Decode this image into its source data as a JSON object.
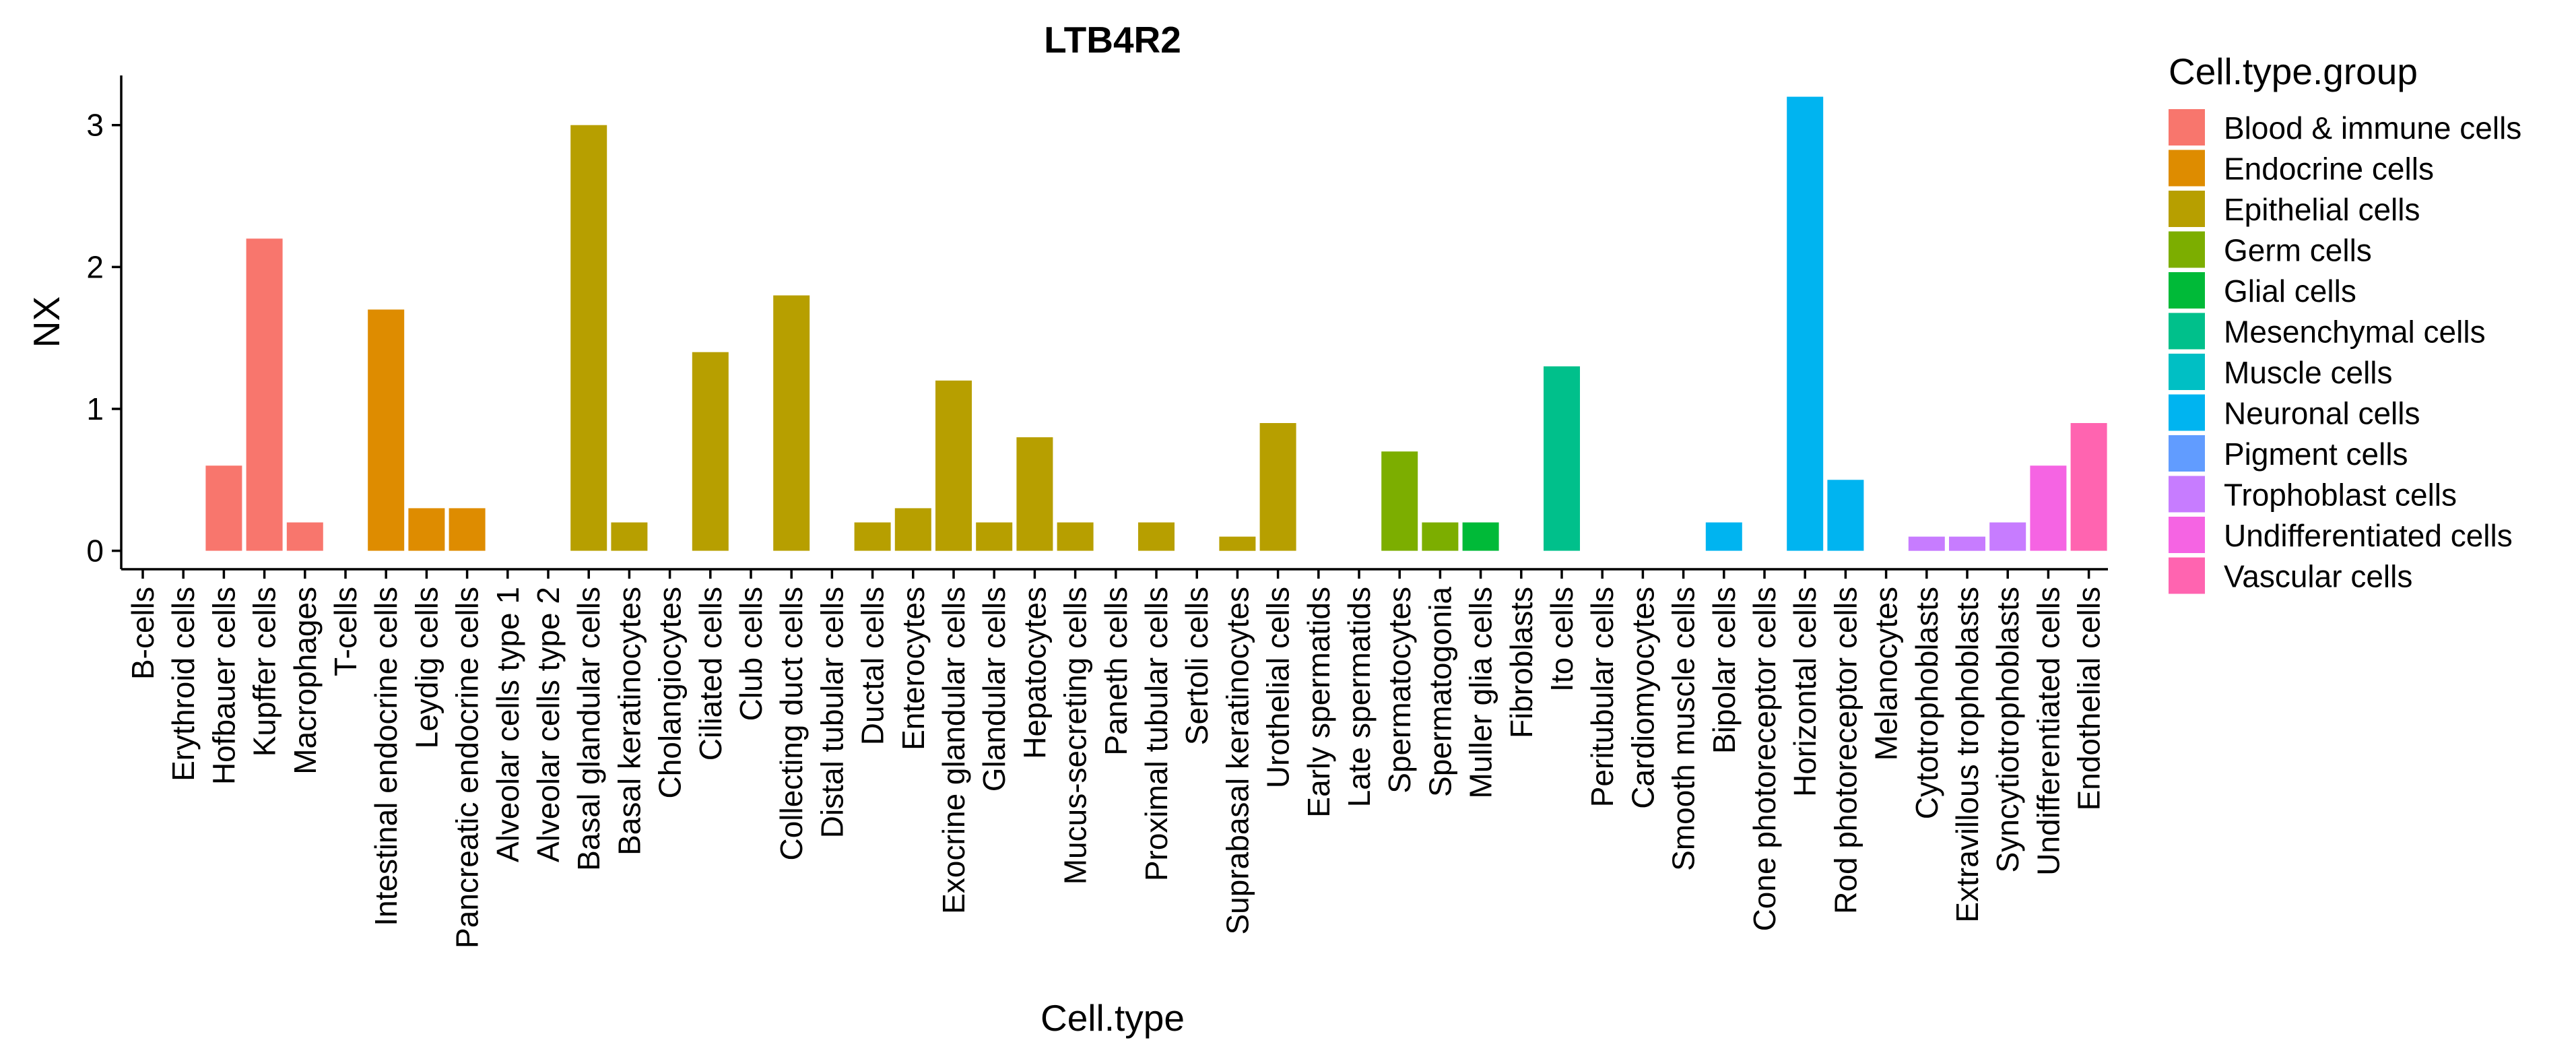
{
  "chart_data": {
    "type": "bar",
    "title": "LTB4R2",
    "xlabel": "Cell.type",
    "ylabel": "NX",
    "ylim": [
      -0.13,
      3.35
    ],
    "yticks": [
      0,
      1,
      2,
      3
    ],
    "grid": false,
    "legend": {
      "title": "Cell.type.group",
      "placement": "right",
      "entries": [
        {
          "name": "Blood & immune cells",
          "color": "#F8766D"
        },
        {
          "name": "Endocrine cells",
          "color": "#DE8C00"
        },
        {
          "name": "Epithelial cells",
          "color": "#B79F00"
        },
        {
          "name": "Germ cells",
          "color": "#7CAE00"
        },
        {
          "name": "Glial cells",
          "color": "#00BA38"
        },
        {
          "name": "Mesenchymal cells",
          "color": "#00C08B"
        },
        {
          "name": "Muscle cells",
          "color": "#00BFC4"
        },
        {
          "name": "Neuronal cells",
          "color": "#00B4F0"
        },
        {
          "name": "Pigment cells",
          "color": "#619CFF"
        },
        {
          "name": "Trophoblast cells",
          "color": "#C77CFF"
        },
        {
          "name": "Undifferentiated cells",
          "color": "#F564E3"
        },
        {
          "name": "Vascular cells",
          "color": "#FF64B0"
        }
      ]
    },
    "bars": [
      {
        "category": "B-cells",
        "group": "Blood & immune cells",
        "value": 0
      },
      {
        "category": "Erythroid cells",
        "group": "Blood & immune cells",
        "value": 0
      },
      {
        "category": "Hofbauer cells",
        "group": "Blood & immune cells",
        "value": 0.6
      },
      {
        "category": "Kupffer cells",
        "group": "Blood & immune cells",
        "value": 2.2
      },
      {
        "category": "Macrophages",
        "group": "Blood & immune cells",
        "value": 0.2
      },
      {
        "category": "T-cells",
        "group": "Blood & immune cells",
        "value": 0
      },
      {
        "category": "Intestinal endocrine cells",
        "group": "Endocrine cells",
        "value": 1.7
      },
      {
        "category": "Leydig cells",
        "group": "Endocrine cells",
        "value": 0.3
      },
      {
        "category": "Pancreatic endocrine cells",
        "group": "Endocrine cells",
        "value": 0.3
      },
      {
        "category": "Alveolar cells type 1",
        "group": "Epithelial cells",
        "value": 0
      },
      {
        "category": "Alveolar cells type 2",
        "group": "Epithelial cells",
        "value": 0
      },
      {
        "category": "Basal glandular cells",
        "group": "Epithelial cells",
        "value": 3.0
      },
      {
        "category": "Basal keratinocytes",
        "group": "Epithelial cells",
        "value": 0.2
      },
      {
        "category": "Cholangiocytes",
        "group": "Epithelial cells",
        "value": 0
      },
      {
        "category": "Ciliated cells",
        "group": "Epithelial cells",
        "value": 1.4
      },
      {
        "category": "Club cells",
        "group": "Epithelial cells",
        "value": 0
      },
      {
        "category": "Collecting duct cells",
        "group": "Epithelial cells",
        "value": 1.8
      },
      {
        "category": "Distal tubular cells",
        "group": "Epithelial cells",
        "value": 0
      },
      {
        "category": "Ductal cells",
        "group": "Epithelial cells",
        "value": 0.2
      },
      {
        "category": "Enterocytes",
        "group": "Epithelial cells",
        "value": 0.3
      },
      {
        "category": "Exocrine glandular cells",
        "group": "Epithelial cells",
        "value": 1.2
      },
      {
        "category": "Glandular cells",
        "group": "Epithelial cells",
        "value": 0.2
      },
      {
        "category": "Hepatocytes",
        "group": "Epithelial cells",
        "value": 0.8
      },
      {
        "category": "Mucus-secreting cells",
        "group": "Epithelial cells",
        "value": 0.2
      },
      {
        "category": "Paneth cells",
        "group": "Epithelial cells",
        "value": 0
      },
      {
        "category": "Proximal tubular cells",
        "group": "Epithelial cells",
        "value": 0.2
      },
      {
        "category": "Sertoli cells",
        "group": "Epithelial cells",
        "value": 0
      },
      {
        "category": "Suprabasal keratinocytes",
        "group": "Epithelial cells",
        "value": 0.1
      },
      {
        "category": "Urothelial cells",
        "group": "Epithelial cells",
        "value": 0.9
      },
      {
        "category": "Early spermatids",
        "group": "Germ cells",
        "value": 0
      },
      {
        "category": "Late spermatids",
        "group": "Germ cells",
        "value": 0
      },
      {
        "category": "Spermatocytes",
        "group": "Germ cells",
        "value": 0.7
      },
      {
        "category": "Spermatogonia",
        "group": "Germ cells",
        "value": 0.2
      },
      {
        "category": "Muller glia cells",
        "group": "Glial cells",
        "value": 0.2
      },
      {
        "category": "Fibroblasts",
        "group": "Mesenchymal cells",
        "value": 0
      },
      {
        "category": "Ito cells",
        "group": "Mesenchymal cells",
        "value": 1.3
      },
      {
        "category": "Peritubular cells",
        "group": "Mesenchymal cells",
        "value": 0
      },
      {
        "category": "Cardiomyocytes",
        "group": "Muscle cells",
        "value": 0
      },
      {
        "category": "Smooth muscle cells",
        "group": "Muscle cells",
        "value": 0
      },
      {
        "category": "Bipolar cells",
        "group": "Neuronal cells",
        "value": 0.2
      },
      {
        "category": "Cone photoreceptor cells",
        "group": "Neuronal cells",
        "value": 0
      },
      {
        "category": "Horizontal cells",
        "group": "Neuronal cells",
        "value": 3.2
      },
      {
        "category": "Rod photoreceptor cells",
        "group": "Neuronal cells",
        "value": 0.5
      },
      {
        "category": "Melanocytes",
        "group": "Pigment cells",
        "value": 0
      },
      {
        "category": "Cytotrophoblasts",
        "group": "Trophoblast cells",
        "value": 0.1
      },
      {
        "category": "Extravillous trophoblasts",
        "group": "Trophoblast cells",
        "value": 0.1
      },
      {
        "category": "Syncytiotrophoblasts",
        "group": "Trophoblast cells",
        "value": 0.2
      },
      {
        "category": "Undifferentiated cells",
        "group": "Undifferentiated cells",
        "value": 0.6
      },
      {
        "category": "Endothelial cells",
        "group": "Vascular cells",
        "value": 0.9
      }
    ]
  }
}
